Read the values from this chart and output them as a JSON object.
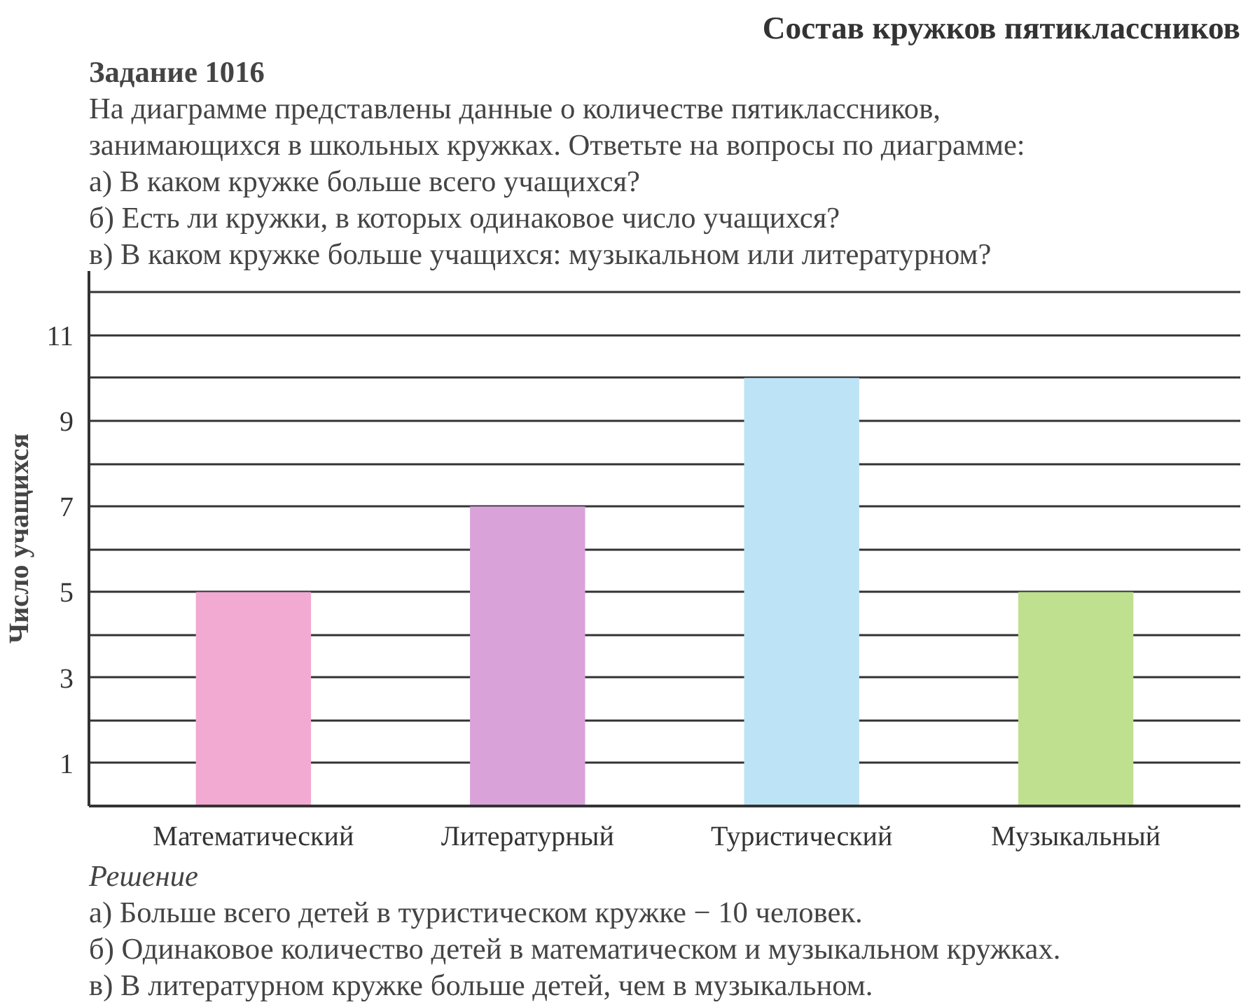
{
  "chart_data": {
    "type": "bar",
    "title": "Состав кружков пятиклассников",
    "ylabel": "Число учащихся",
    "categories": [
      "Математический",
      "Литературный",
      "Туристический",
      "Музыкальный"
    ],
    "values": [
      5,
      7,
      10,
      5
    ],
    "colors": [
      "#f2a9d2",
      "#d9a3d9",
      "#bde3f7",
      "#bfe08f"
    ],
    "ylim": [
      0,
      12.5
    ],
    "yticks": [
      {
        "value": 0,
        "label": null
      },
      1,
      {
        "value": 2,
        "label": null
      },
      3,
      {
        "value": 4,
        "label": null
      },
      5,
      {
        "value": 6,
        "label": null
      },
      7,
      {
        "value": 8,
        "label": null
      },
      9,
      {
        "value": 10,
        "label": null
      },
      11,
      {
        "value": 12,
        "label": null
      }
    ],
    "grid": "y",
    "annotations": [
      "Задание 1016",
      "На диаграмме представлены данные о количестве пятиклассников,",
      "занимающихся в школьных кружках. Ответьте на вопросы по диаграмме:",
      "а) В каком кружке больше всего учащихся?",
      "б) Есть ли кружки, в которых одинаковое число учащихся?",
      "в) В каком кружке больше учащихся: музыкальном или литературном?",
      "Решение",
      "а) Больше всего детей в туристическом кружке − 10 человек.",
      "б) Одинаковое количество детей в математическом и музыкальном кружках.",
      "в) В литературном кружке больше детей, чем в музыкальном."
    ]
  }
}
